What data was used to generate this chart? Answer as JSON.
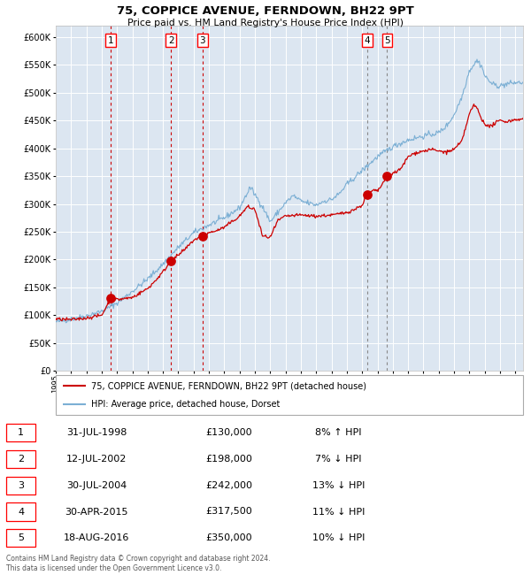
{
  "title": "75, COPPICE AVENUE, FERNDOWN, BH22 9PT",
  "subtitle": "Price paid vs. HM Land Registry's House Price Index (HPI)",
  "legend_line1": "75, COPPICE AVENUE, FERNDOWN, BH22 9PT (detached house)",
  "legend_line2": "HPI: Average price, detached house, Dorset",
  "footer1": "Contains HM Land Registry data © Crown copyright and database right 2024.",
  "footer2": "This data is licensed under the Open Government Licence v3.0.",
  "sales": [
    {
      "num": 1,
      "date": "31-JUL-1998",
      "price": 130000,
      "pct": "8% ↑ HPI",
      "year": 1998.58
    },
    {
      "num": 2,
      "date": "12-JUL-2002",
      "price": 198000,
      "pct": "7% ↓ HPI",
      "year": 2002.53
    },
    {
      "num": 3,
      "date": "30-JUL-2004",
      "price": 242000,
      "pct": "13% ↓ HPI",
      "year": 2004.58
    },
    {
      "num": 4,
      "date": "30-APR-2015",
      "price": 317500,
      "pct": "11% ↓ HPI",
      "year": 2015.33
    },
    {
      "num": 5,
      "date": "18-AUG-2016",
      "price": 350000,
      "pct": "10% ↓ HPI",
      "year": 2016.63
    }
  ],
  "red_line_color": "#cc0000",
  "blue_line_color": "#7bafd4",
  "plot_bg": "#dce6f1",
  "grid_color": "#ffffff",
  "xmin": 1995.0,
  "xmax": 2025.5,
  "ymin": 0,
  "ymax": 620000,
  "hpi_ref": [
    [
      1995.0,
      88000
    ],
    [
      1996.0,
      93000
    ],
    [
      1997.0,
      99000
    ],
    [
      1998.0,
      107000
    ],
    [
      1999.0,
      122000
    ],
    [
      2000.0,
      143000
    ],
    [
      2001.0,
      165000
    ],
    [
      2002.0,
      192000
    ],
    [
      2003.0,
      222000
    ],
    [
      2004.0,
      248000
    ],
    [
      2005.0,
      262000
    ],
    [
      2006.0,
      275000
    ],
    [
      2007.0,
      293000
    ],
    [
      2007.7,
      330000
    ],
    [
      2008.5,
      295000
    ],
    [
      2009.0,
      268000
    ],
    [
      2009.5,
      285000
    ],
    [
      2010.0,
      302000
    ],
    [
      2010.5,
      315000
    ],
    [
      2011.0,
      305000
    ],
    [
      2012.0,
      298000
    ],
    [
      2012.5,
      305000
    ],
    [
      2013.0,
      308000
    ],
    [
      2013.5,
      318000
    ],
    [
      2014.0,
      335000
    ],
    [
      2015.0,
      360000
    ],
    [
      2016.0,
      385000
    ],
    [
      2017.0,
      403000
    ],
    [
      2018.0,
      415000
    ],
    [
      2019.0,
      422000
    ],
    [
      2020.0,
      428000
    ],
    [
      2020.5,
      440000
    ],
    [
      2021.0,
      460000
    ],
    [
      2021.5,
      492000
    ],
    [
      2022.0,
      540000
    ],
    [
      2022.5,
      558000
    ],
    [
      2022.8,
      548000
    ],
    [
      2023.0,
      530000
    ],
    [
      2023.5,
      515000
    ],
    [
      2024.0,
      512000
    ],
    [
      2024.5,
      516000
    ],
    [
      2025.0,
      518000
    ]
  ],
  "red_ref": [
    [
      1995.0,
      93000
    ],
    [
      1996.0,
      92000
    ],
    [
      1997.0,
      95000
    ],
    [
      1998.0,
      100000
    ],
    [
      1998.58,
      130000
    ],
    [
      1999.0,
      128000
    ],
    [
      1999.5,
      130000
    ],
    [
      2000.0,
      132000
    ],
    [
      2001.0,
      148000
    ],
    [
      2001.5,
      162000
    ],
    [
      2002.0,
      178000
    ],
    [
      2002.53,
      198000
    ],
    [
      2003.0,
      208000
    ],
    [
      2003.5,
      220000
    ],
    [
      2004.0,
      235000
    ],
    [
      2004.58,
      242000
    ],
    [
      2005.0,
      248000
    ],
    [
      2005.5,
      252000
    ],
    [
      2006.0,
      258000
    ],
    [
      2007.0,
      278000
    ],
    [
      2007.5,
      295000
    ],
    [
      2008.0,
      290000
    ],
    [
      2008.5,
      242000
    ],
    [
      2009.0,
      240000
    ],
    [
      2009.5,
      270000
    ],
    [
      2010.0,
      278000
    ],
    [
      2011.0,
      280000
    ],
    [
      2012.0,
      278000
    ],
    [
      2013.0,
      280000
    ],
    [
      2013.5,
      282000
    ],
    [
      2014.0,
      285000
    ],
    [
      2014.5,
      290000
    ],
    [
      2015.0,
      298000
    ],
    [
      2015.33,
      317500
    ],
    [
      2015.8,
      325000
    ],
    [
      2016.0,
      322000
    ],
    [
      2016.63,
      350000
    ],
    [
      2017.0,
      355000
    ],
    [
      2017.5,
      362000
    ],
    [
      2018.0,
      385000
    ],
    [
      2018.5,
      392000
    ],
    [
      2019.0,
      395000
    ],
    [
      2019.5,
      398000
    ],
    [
      2020.0,
      395000
    ],
    [
      2020.5,
      393000
    ],
    [
      2021.0,
      398000
    ],
    [
      2021.5,
      412000
    ],
    [
      2022.0,
      462000
    ],
    [
      2022.3,
      478000
    ],
    [
      2022.5,
      472000
    ],
    [
      2022.8,
      452000
    ],
    [
      2023.0,
      445000
    ],
    [
      2023.3,
      438000
    ],
    [
      2023.5,
      442000
    ],
    [
      2024.0,
      450000
    ],
    [
      2024.5,
      448000
    ],
    [
      2025.0,
      452000
    ]
  ]
}
